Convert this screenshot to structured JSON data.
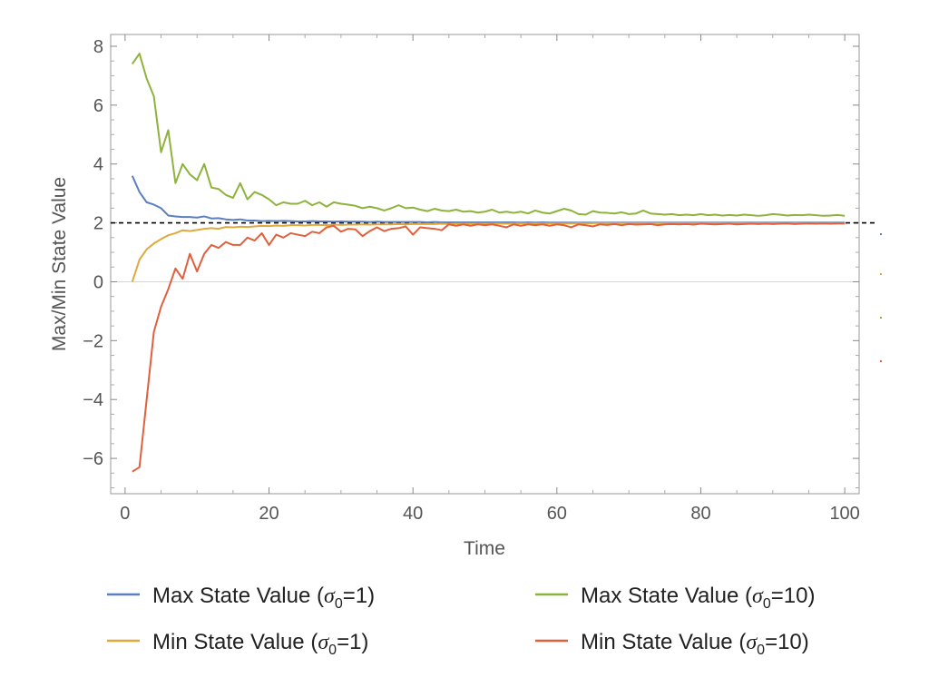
{
  "chart_data": {
    "type": "line",
    "title": "",
    "xlabel": "Time",
    "ylabel": "Max/Min State Value",
    "xlim": [
      -2,
      102
    ],
    "ylim": [
      -7.2,
      8.4
    ],
    "xticks": [
      0,
      20,
      40,
      60,
      80,
      100
    ],
    "xtick_labels": [
      "0",
      "20",
      "40",
      "60",
      "80",
      "100"
    ],
    "yticks": [
      -6,
      -4,
      -2,
      0,
      2,
      4,
      6,
      8
    ],
    "ytick_labels": [
      "−6",
      "−4",
      "−2",
      "0",
      "2",
      "4",
      "6",
      "8"
    ],
    "grid": false,
    "zero_line": 0,
    "reference_line": {
      "y": 2,
      "style": "dashed",
      "color": "#000000"
    },
    "legend_placement": "bottom",
    "series": [
      {
        "name": "Max State Value (σ₀=1)",
        "legend_main": "Max State Value (",
        "legend_sigma": "σ",
        "legend_sub": "0",
        "legend_tail": "=1)",
        "color": "#5b7fbf",
        "x": [
          1,
          2,
          3,
          4,
          5,
          6,
          7,
          8,
          9,
          10,
          11,
          12,
          13,
          14,
          15,
          16,
          17,
          18,
          19,
          20,
          21,
          22,
          23,
          24,
          25,
          26,
          27,
          28,
          29,
          30,
          31,
          32,
          33,
          34,
          35,
          36,
          37,
          38,
          39,
          40,
          41,
          42,
          43,
          44,
          45,
          46,
          47,
          48,
          49,
          50,
          51,
          52,
          53,
          54,
          55,
          56,
          57,
          58,
          59,
          60,
          61,
          62,
          63,
          64,
          65,
          66,
          67,
          68,
          69,
          70,
          71,
          72,
          73,
          74,
          75,
          76,
          77,
          78,
          79,
          80,
          81,
          82,
          83,
          84,
          85,
          86,
          87,
          88,
          89,
          90,
          91,
          92,
          93,
          94,
          95,
          96,
          97,
          98,
          99,
          100
        ],
        "values": [
          3.6,
          3.05,
          2.7,
          2.62,
          2.5,
          2.25,
          2.22,
          2.2,
          2.2,
          2.18,
          2.22,
          2.15,
          2.16,
          2.12,
          2.1,
          2.12,
          2.08,
          2.08,
          2.06,
          2.07,
          2.06,
          2.07,
          2.06,
          2.05,
          2.05,
          2.06,
          2.05,
          2.05,
          2.04,
          2.05,
          2.04,
          2.04,
          2.04,
          2.03,
          2.04,
          2.03,
          2.03,
          2.03,
          2.03,
          2.03,
          2.03,
          2.02,
          2.03,
          2.02,
          2.02,
          2.02,
          2.02,
          2.02,
          2.02,
          2.02,
          2.02,
          2.02,
          2.02,
          2.02,
          2.01,
          2.02,
          2.01,
          2.02,
          2.01,
          2.01,
          2.01,
          2.01,
          2.01,
          2.01,
          2.01,
          2.01,
          2.01,
          2.01,
          2.01,
          2.01,
          2.01,
          2.01,
          2.01,
          2.01,
          2.01,
          2.01,
          2.01,
          2.01,
          2.01,
          2.01,
          2.01,
          2.01,
          2.01,
          2.01,
          2.01,
          2.01,
          2.01,
          2.01,
          2.01,
          2.01,
          2.01,
          2.01,
          2.01,
          2.01,
          2.01,
          2.01,
          2.01,
          2.01,
          2.01,
          2.01
        ]
      },
      {
        "name": "Min State Value (σ₀=1)",
        "legend_main": "Min State Value (",
        "legend_sigma": "σ",
        "legend_sub": "0",
        "legend_tail": "=1)",
        "color": "#e0a93d",
        "x": [
          1,
          2,
          3,
          4,
          5,
          6,
          7,
          8,
          9,
          10,
          11,
          12,
          13,
          14,
          15,
          16,
          17,
          18,
          19,
          20,
          21,
          22,
          23,
          24,
          25,
          26,
          27,
          28,
          29,
          30,
          31,
          32,
          33,
          34,
          35,
          36,
          37,
          38,
          39,
          40,
          41,
          42,
          43,
          44,
          45,
          46,
          47,
          48,
          49,
          50,
          51,
          52,
          53,
          54,
          55,
          56,
          57,
          58,
          59,
          60,
          61,
          62,
          63,
          64,
          65,
          66,
          67,
          68,
          69,
          70,
          71,
          72,
          73,
          74,
          75,
          76,
          77,
          78,
          79,
          80,
          81,
          82,
          83,
          84,
          85,
          86,
          87,
          88,
          89,
          90,
          91,
          92,
          93,
          94,
          95,
          96,
          97,
          98,
          99,
          100
        ],
        "values": [
          0.0,
          0.75,
          1.1,
          1.3,
          1.45,
          1.58,
          1.65,
          1.75,
          1.72,
          1.76,
          1.8,
          1.82,
          1.8,
          1.86,
          1.85,
          1.87,
          1.86,
          1.88,
          1.9,
          1.89,
          1.91,
          1.9,
          1.92,
          1.92,
          1.91,
          1.93,
          1.93,
          1.92,
          1.94,
          1.93,
          1.94,
          1.94,
          1.95,
          1.94,
          1.95,
          1.95,
          1.95,
          1.96,
          1.95,
          1.96,
          1.96,
          1.96,
          1.96,
          1.97,
          1.96,
          1.97,
          1.97,
          1.97,
          1.97,
          1.97,
          1.97,
          1.98,
          1.97,
          1.98,
          1.98,
          1.98,
          1.98,
          1.98,
          1.98,
          1.98,
          1.98,
          1.98,
          1.99,
          1.98,
          1.99,
          1.99,
          1.99,
          1.99,
          1.99,
          1.99,
          1.99,
          1.99,
          1.99,
          1.99,
          1.99,
          1.99,
          1.99,
          1.99,
          1.99,
          1.99,
          1.99,
          1.99,
          1.99,
          1.99,
          1.99,
          1.99,
          1.99,
          1.99,
          1.99,
          1.99,
          1.99,
          1.99,
          1.99,
          1.99,
          1.99,
          1.99,
          1.99,
          1.99,
          1.99,
          1.99
        ]
      },
      {
        "name": "Max State Value (σ₀=10)",
        "legend_main": "Max State Value (",
        "legend_sigma": "σ",
        "legend_sub": "0",
        "legend_tail": "=10)",
        "color": "#8eb33c",
        "x": [
          1,
          2,
          3,
          4,
          5,
          6,
          7,
          8,
          9,
          10,
          11,
          12,
          13,
          14,
          15,
          16,
          17,
          18,
          19,
          20,
          21,
          22,
          23,
          24,
          25,
          26,
          27,
          28,
          29,
          30,
          31,
          32,
          33,
          34,
          35,
          36,
          37,
          38,
          39,
          40,
          41,
          42,
          43,
          44,
          45,
          46,
          47,
          48,
          49,
          50,
          51,
          52,
          53,
          54,
          55,
          56,
          57,
          58,
          59,
          60,
          61,
          62,
          63,
          64,
          65,
          66,
          67,
          68,
          69,
          70,
          71,
          72,
          73,
          74,
          75,
          76,
          77,
          78,
          79,
          80,
          81,
          82,
          83,
          84,
          85,
          86,
          87,
          88,
          89,
          90,
          91,
          92,
          93,
          94,
          95,
          96,
          97,
          98,
          99,
          100
        ],
        "values": [
          7.4,
          7.75,
          6.9,
          6.3,
          4.4,
          5.15,
          3.35,
          4.0,
          3.65,
          3.45,
          4.0,
          3.2,
          3.15,
          2.95,
          2.85,
          3.35,
          2.8,
          3.05,
          2.95,
          2.8,
          2.6,
          2.7,
          2.65,
          2.65,
          2.75,
          2.6,
          2.7,
          2.55,
          2.7,
          2.65,
          2.62,
          2.58,
          2.5,
          2.55,
          2.5,
          2.42,
          2.5,
          2.6,
          2.5,
          2.52,
          2.45,
          2.4,
          2.48,
          2.42,
          2.4,
          2.45,
          2.38,
          2.4,
          2.35,
          2.38,
          2.45,
          2.35,
          2.38,
          2.34,
          2.38,
          2.32,
          2.42,
          2.35,
          2.32,
          2.4,
          2.48,
          2.42,
          2.3,
          2.28,
          2.4,
          2.35,
          2.34,
          2.32,
          2.36,
          2.3,
          2.32,
          2.42,
          2.32,
          2.3,
          2.28,
          2.3,
          2.26,
          2.28,
          2.26,
          2.3,
          2.26,
          2.28,
          2.25,
          2.27,
          2.25,
          2.28,
          2.26,
          2.24,
          2.26,
          2.3,
          2.28,
          2.25,
          2.27,
          2.26,
          2.28,
          2.26,
          2.24,
          2.25,
          2.27,
          2.24
        ]
      },
      {
        "name": "Min State Value (σ₀=10)",
        "legend_main": "Min State Value (",
        "legend_sigma": "σ",
        "legend_sub": "0",
        "legend_tail": "=10)",
        "color": "#e0603d",
        "x": [
          1,
          2,
          3,
          4,
          5,
          6,
          7,
          8,
          9,
          10,
          11,
          12,
          13,
          14,
          15,
          16,
          17,
          18,
          19,
          20,
          21,
          22,
          23,
          24,
          25,
          26,
          27,
          28,
          29,
          30,
          31,
          32,
          33,
          34,
          35,
          36,
          37,
          38,
          39,
          40,
          41,
          42,
          43,
          44,
          45,
          46,
          47,
          48,
          49,
          50,
          51,
          52,
          53,
          54,
          55,
          56,
          57,
          58,
          59,
          60,
          61,
          62,
          63,
          64,
          65,
          66,
          67,
          68,
          69,
          70,
          71,
          72,
          73,
          74,
          75,
          76,
          77,
          78,
          79,
          80,
          81,
          82,
          83,
          84,
          85,
          86,
          87,
          88,
          89,
          90,
          91,
          92,
          93,
          94,
          95,
          96,
          97,
          98,
          99,
          100
        ],
        "values": [
          -6.45,
          -6.3,
          -4.0,
          -1.7,
          -0.85,
          -0.25,
          0.45,
          0.1,
          0.95,
          0.35,
          0.95,
          1.25,
          1.15,
          1.35,
          1.25,
          1.25,
          1.5,
          1.4,
          1.65,
          1.25,
          1.6,
          1.5,
          1.65,
          1.6,
          1.55,
          1.7,
          1.65,
          1.85,
          1.9,
          1.7,
          1.8,
          1.78,
          1.55,
          1.72,
          1.85,
          1.72,
          1.8,
          1.82,
          1.88,
          1.6,
          1.85,
          1.82,
          1.8,
          1.75,
          1.95,
          1.9,
          1.95,
          1.9,
          1.95,
          1.92,
          1.95,
          1.9,
          1.85,
          1.95,
          1.9,
          1.95,
          1.92,
          1.95,
          1.9,
          1.95,
          1.92,
          1.85,
          1.95,
          1.92,
          1.88,
          1.95,
          1.93,
          1.96,
          1.92,
          1.96,
          1.94,
          1.95,
          1.96,
          1.92,
          1.95,
          1.96,
          1.95,
          1.96,
          1.94,
          1.97,
          1.96,
          1.95,
          1.96,
          1.97,
          1.95,
          1.96,
          1.97,
          1.96,
          1.97,
          1.96,
          1.97,
          1.98,
          1.96,
          1.97,
          1.98,
          1.97,
          1.98,
          1.97,
          1.98,
          1.98
        ]
      }
    ]
  }
}
